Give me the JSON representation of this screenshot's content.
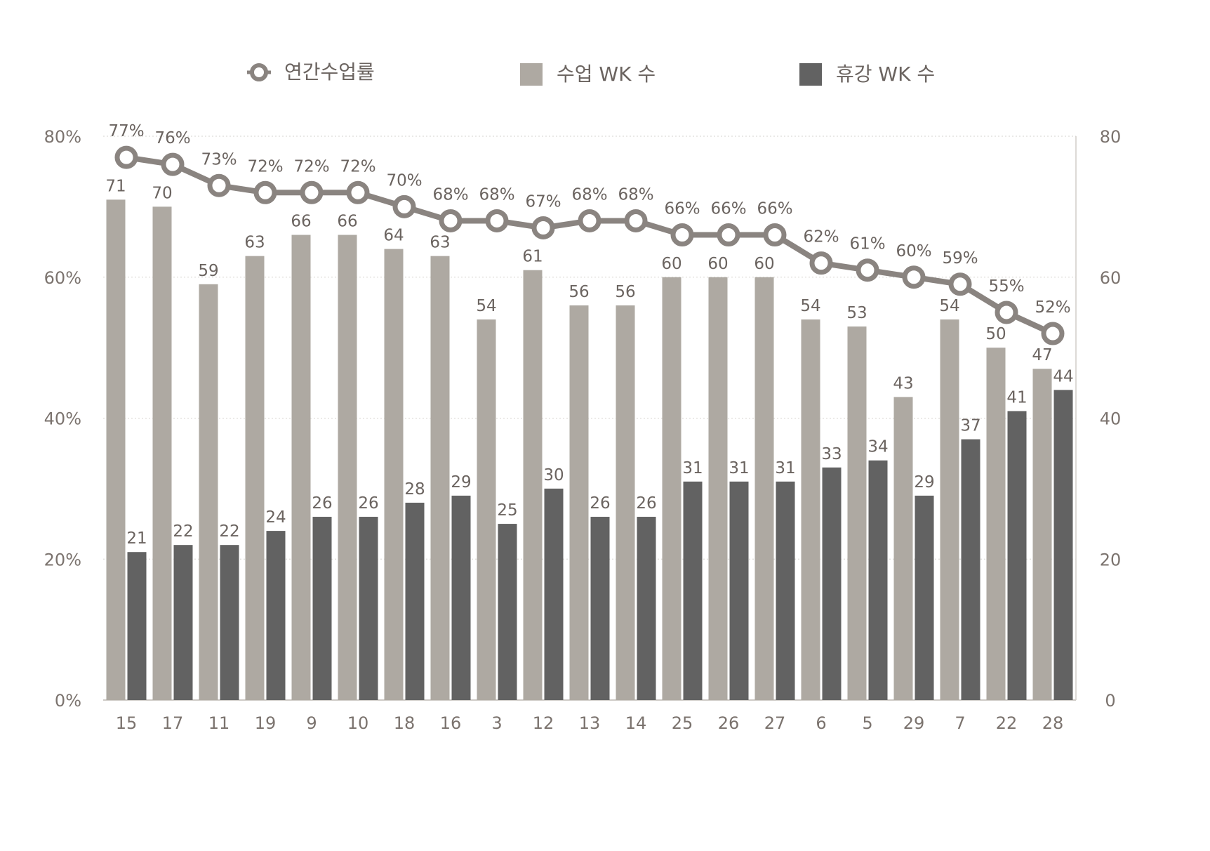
{
  "colors": {
    "class_bar": "#aea9a2",
    "rest_bar": "#626262",
    "rate_line": "#8a8480",
    "text": "#6b6460",
    "axis_text": "#7b736e",
    "grid": "#d6d3cf"
  },
  "legend": {
    "rate_label": "연간수업률",
    "class_label": "수업 WK 수",
    "rest_label": "휴강 WK 수"
  },
  "chart_data": {
    "type": "bar",
    "title": "",
    "xlabel": "",
    "ylabel": "",
    "categories": [
      "15",
      "17",
      "11",
      "19",
      "9",
      "10",
      "18",
      "16",
      "3",
      "12",
      "13",
      "14",
      "25",
      "26",
      "27",
      "6",
      "5",
      "29",
      "7",
      "22",
      "28"
    ],
    "series": [
      {
        "name": "수업 WK 수",
        "type": "bar",
        "axis": "right",
        "values": [
          71,
          70,
          59,
          63,
          66,
          66,
          64,
          63,
          54,
          61,
          56,
          56,
          60,
          60,
          60,
          54,
          53,
          43,
          54,
          50,
          47
        ]
      },
      {
        "name": "휴강 WK 수",
        "type": "bar",
        "axis": "right",
        "values": [
          21,
          22,
          22,
          24,
          26,
          26,
          28,
          29,
          25,
          30,
          26,
          26,
          31,
          31,
          31,
          33,
          34,
          29,
          37,
          41,
          44
        ]
      },
      {
        "name": "연간수업률",
        "type": "line",
        "axis": "left",
        "values": [
          77,
          76,
          73,
          72,
          72,
          72,
          70,
          68,
          68,
          67,
          68,
          68,
          66,
          66,
          66,
          62,
          61,
          60,
          59,
          55,
          52
        ],
        "labels": [
          "77%",
          "76%",
          "73%",
          "72%",
          "72%",
          "72%",
          "70%",
          "68%",
          "68%",
          "67%",
          "68%",
          "68%",
          "66%",
          "66%",
          "66%",
          "62%",
          "61%",
          "60%",
          "59%",
          "55%",
          "52%"
        ]
      }
    ],
    "left_axis": {
      "ylim": [
        0,
        80
      ],
      "ticks": [
        "0%",
        "20%",
        "40%",
        "60%",
        "80%"
      ]
    },
    "right_axis": {
      "ylim": [
        0,
        80
      ],
      "ticks": [
        "0",
        "20",
        "40",
        "60",
        "80"
      ]
    },
    "grid": true,
    "legend_position": "top"
  }
}
